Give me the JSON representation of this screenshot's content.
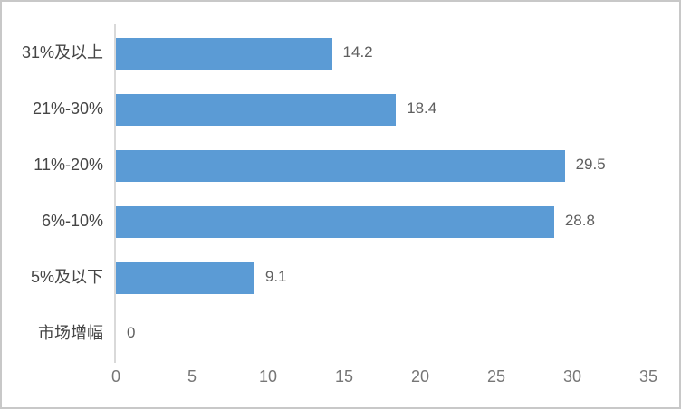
{
  "chart_data": {
    "type": "bar",
    "orientation": "horizontal",
    "title": "",
    "xlabel": "",
    "ylabel": "",
    "categories": [
      "31%及以上",
      "21%-30%",
      "11%-20%",
      "6%-10%",
      "5%及以下",
      "市场增幅"
    ],
    "values": [
      14.2,
      18.4,
      29.5,
      28.8,
      9.1,
      0
    ],
    "value_labels": [
      "14.2",
      "18.4",
      "29.5",
      "28.8",
      "9.1",
      "0"
    ],
    "xticks": [
      "0",
      "5",
      "10",
      "15",
      "20",
      "25",
      "30",
      "35"
    ],
    "xlim": [
      0,
      35
    ],
    "grid": false,
    "legend": false,
    "colors": {
      "bar": "#5b9bd5",
      "axis_line": "#d9d9d9",
      "category_label": "#454545",
      "value_label": "#5f5f5f",
      "tick_label": "#767676",
      "frame_border": "#c8c8c8",
      "background": "#ffffff"
    }
  }
}
